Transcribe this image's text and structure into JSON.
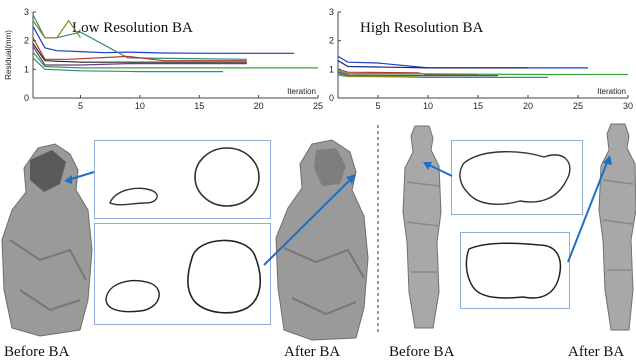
{
  "chart_data": [
    {
      "type": "line",
      "title": "Low Resolution BA",
      "ylabel": "Residual(mm)",
      "xlabel": "Iteration",
      "xlim": [
        1,
        25
      ],
      "ylim": [
        0,
        3
      ],
      "xticks": [
        5,
        10,
        15,
        20,
        25
      ],
      "yticks": [
        0,
        1,
        2,
        3
      ],
      "grid": false,
      "series": [
        {
          "color": "#1f3fbf",
          "x": [
            1,
            2,
            3,
            5,
            7,
            9,
            12,
            16,
            20,
            23
          ],
          "y": [
            2.5,
            1.75,
            1.65,
            1.62,
            1.58,
            1.6,
            1.57,
            1.56,
            1.56,
            1.56
          ]
        },
        {
          "color": "#2a8a7a",
          "x": [
            1,
            2,
            3,
            5,
            9,
            19
          ],
          "y": [
            2.9,
            2.1,
            2.1,
            2.3,
            1.4,
            1.35
          ]
        },
        {
          "color": "#8a8a20",
          "x": [
            1,
            2,
            3,
            4,
            5
          ],
          "y": [
            2.7,
            2.1,
            2.1,
            2.7,
            2.1
          ]
        },
        {
          "color": "#b03a2e",
          "x": [
            1,
            2,
            4,
            9,
            12,
            19
          ],
          "y": [
            2.1,
            1.35,
            1.35,
            1.45,
            1.3,
            1.3
          ]
        },
        {
          "color": "#6a3a90",
          "x": [
            1,
            2,
            5,
            9,
            19
          ],
          "y": [
            1.8,
            1.15,
            1.15,
            1.2,
            1.2
          ]
        },
        {
          "color": "#222222",
          "x": [
            1,
            2,
            5,
            9,
            19
          ],
          "y": [
            1.9,
            1.3,
            1.25,
            1.25,
            1.25
          ]
        },
        {
          "color": "#3aa03a",
          "x": [
            1,
            2,
            5,
            10,
            25
          ],
          "y": [
            1.6,
            1.1,
            1.05,
            1.05,
            1.05
          ]
        },
        {
          "color": "#2f8a8a",
          "x": [
            1,
            2,
            5,
            10,
            17
          ],
          "y": [
            1.4,
            1.0,
            0.95,
            0.92,
            0.92
          ]
        }
      ]
    },
    {
      "type": "line",
      "title": "High Resolution BA",
      "ylabel": "",
      "xlabel": "Iteration",
      "xlim": [
        1,
        30
      ],
      "ylim": [
        0,
        3
      ],
      "xticks": [
        5,
        10,
        15,
        20,
        25,
        30
      ],
      "yticks": [
        0,
        1,
        2,
        3
      ],
      "grid": false,
      "series": [
        {
          "color": "#1f3fbf",
          "x": [
            1,
            2,
            5,
            10,
            15,
            20,
            26
          ],
          "y": [
            1.45,
            1.25,
            1.22,
            1.05,
            1.05,
            1.05,
            1.05
          ]
        },
        {
          "color": "#222a6a",
          "x": [
            1,
            2,
            5,
            10,
            20
          ],
          "y": [
            1.3,
            1.1,
            1.08,
            1.05,
            1.05
          ]
        },
        {
          "color": "#b03a2e",
          "x": [
            1,
            2,
            9,
            10,
            15
          ],
          "y": [
            1.0,
            0.9,
            0.88,
            0.8,
            0.8
          ]
        },
        {
          "color": "#3aa03a",
          "x": [
            1,
            2,
            10,
            20,
            30
          ],
          "y": [
            0.95,
            0.85,
            0.84,
            0.82,
            0.82
          ]
        },
        {
          "color": "#6a3a90",
          "x": [
            1,
            2,
            10,
            17
          ],
          "y": [
            0.9,
            0.8,
            0.78,
            0.78
          ]
        },
        {
          "color": "#2f8a8a",
          "x": [
            1,
            2,
            10,
            22
          ],
          "y": [
            0.85,
            0.77,
            0.72,
            0.72
          ]
        },
        {
          "color": "#8a8a20",
          "x": [
            1,
            2,
            9
          ],
          "y": [
            0.8,
            0.75,
            0.74
          ]
        }
      ]
    }
  ],
  "captions": {
    "low_before": "Before BA",
    "low_after": "After BA",
    "high_before": "Before BA",
    "high_after": "After BA"
  },
  "colors": {
    "inset_border": "#8fb0d6",
    "arrow": "#1f6fc4",
    "mesh": "#9a9a9a"
  }
}
